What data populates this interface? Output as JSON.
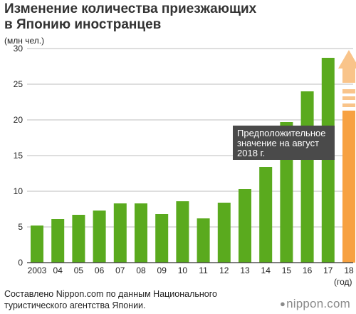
{
  "header": {
    "title_line1": "Изменение количества приезжающих",
    "title_line2": "в Японию иностранцев"
  },
  "footer": {
    "source_line1": "Составлено Nippon.com по данным Национального",
    "source_line2": "туристического агентства Японии.",
    "brand_dot": "●",
    "brand": "nippon.com"
  },
  "colors": {
    "bar_actual": "#5aaa1e",
    "bar_projected": "#f7a141",
    "arrow": "#f9c48a",
    "callout_bg": "#4a4a4a",
    "grid": "#bdbdbd",
    "axis": "#333333"
  },
  "chart_data": {
    "type": "bar",
    "categories": [
      "2003",
      "04",
      "05",
      "06",
      "07",
      "08",
      "09",
      "10",
      "11",
      "12",
      "13",
      "14",
      "15",
      "16",
      "17",
      "18"
    ],
    "values": [
      5.2,
      6.1,
      6.7,
      7.3,
      8.3,
      8.3,
      6.8,
      8.6,
      6.2,
      8.4,
      10.3,
      13.4,
      19.7,
      24.0,
      28.7,
      21.3
    ],
    "projected_index": 15,
    "ylim": [
      0,
      30
    ],
    "yticks": [
      0,
      5,
      10,
      15,
      20,
      25,
      30
    ],
    "ylabel": "(млн чел.)",
    "xlabel": "(год)",
    "grid": true,
    "annotation": {
      "line1": "Предположительное",
      "line2": "значение на август",
      "line3": "2018 г."
    }
  }
}
